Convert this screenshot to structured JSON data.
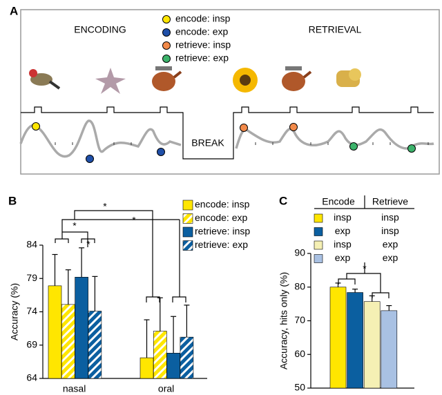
{
  "panel_a": {
    "label": "A",
    "encoding": "ENCODING",
    "retrieval": "RETRIEVAL",
    "break": "BREAK",
    "legend": [
      {
        "name": "encode: insp",
        "color": "#ffe600"
      },
      {
        "name": "encode: exp",
        "color": "#1f4fa8"
      },
      {
        "name": "retrieve: insp",
        "color": "#f28a4a"
      },
      {
        "name": "retrieve: exp",
        "color": "#3cb36b"
      }
    ]
  },
  "chart_data": [
    {
      "type": "bar",
      "panel_label": "B",
      "ylabel": "Accuracy (%)",
      "categories": [
        "nasal",
        "oral"
      ],
      "series": [
        {
          "name": "encode: insp",
          "color": "#ffe600",
          "hatch": false,
          "values": [
            77.9,
            67.1
          ],
          "errors": [
            4.7,
            5.7
          ]
        },
        {
          "name": "encode: exp",
          "color": "#ffe600",
          "hatch": true,
          "values": [
            75.1,
            71.1
          ],
          "errors": [
            5.2,
            5.0
          ]
        },
        {
          "name": "retrieve: insp",
          "color": "#0b5fa0",
          "hatch": false,
          "values": [
            79.2,
            67.8
          ],
          "errors": [
            4.4,
            5.5
          ]
        },
        {
          "name": "retrieve: exp",
          "color": "#0b5fa0",
          "hatch": true,
          "values": [
            74.1,
            70.2
          ],
          "errors": [
            5.2,
            4.8
          ]
        }
      ],
      "ylim": [
        64,
        84
      ],
      "yticks": [
        64,
        69,
        74,
        79,
        84
      ],
      "annotations": [
        "*",
        "*",
        "*",
        "*"
      ]
    },
    {
      "type": "bar",
      "panel_label": "C",
      "ylabel": "Accuracy, hits only (%)",
      "table": {
        "header": [
          "Encode",
          "Retrieve"
        ],
        "rows": [
          [
            "insp",
            "insp"
          ],
          [
            "exp",
            "insp"
          ],
          [
            "insp",
            "exp"
          ],
          [
            "exp",
            "exp"
          ]
        ]
      },
      "colors": [
        "#ffe600",
        "#0b5fa0",
        "#f5f0b4",
        "#a9c1e3"
      ],
      "values": [
        80.0,
        78.4,
        75.7,
        73.0
      ],
      "errors": [
        1.2,
        1.0,
        1.7,
        1.5
      ],
      "ylim": [
        50,
        90
      ],
      "yticks": [
        50,
        60,
        70,
        80,
        90
      ],
      "annotations": [
        "*"
      ]
    }
  ]
}
